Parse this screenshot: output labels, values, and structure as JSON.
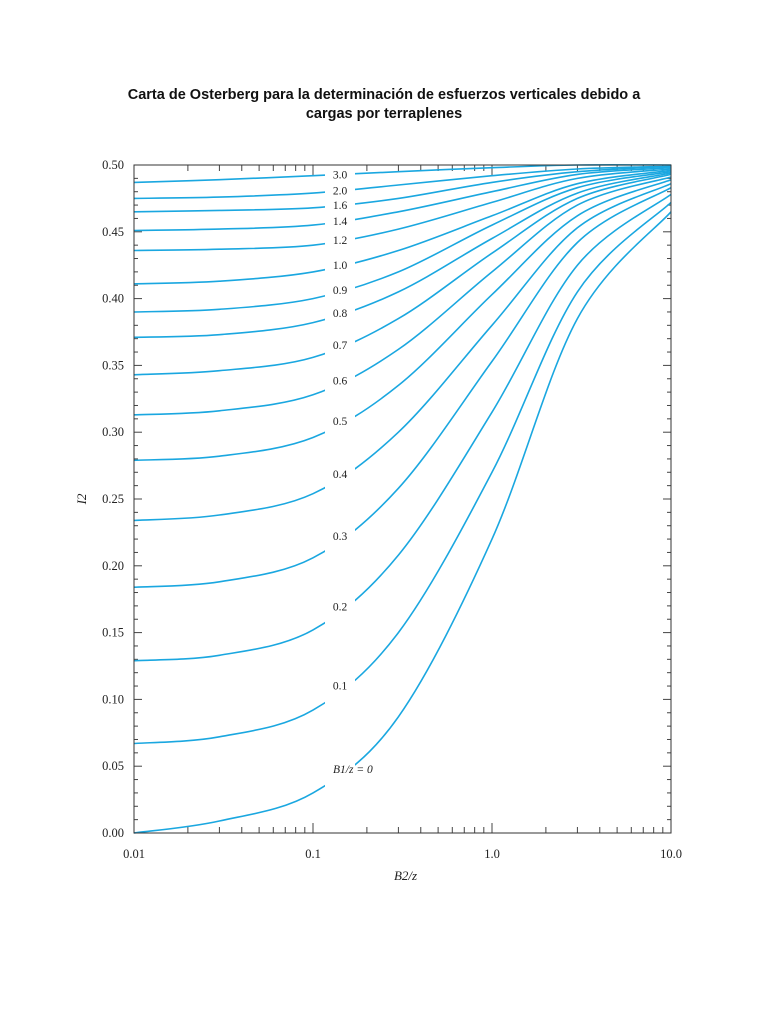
{
  "title_line1": "Carta de Osterberg para la determinación de esfuerzos verticales debido a",
  "title_line2": "cargas por terraplenes",
  "chart_data": {
    "type": "line",
    "xlabel": "B2/z",
    "ylabel": "I2",
    "x_scale": "log",
    "xlim": [
      0.01,
      10.0
    ],
    "ylim": [
      0.0,
      0.5
    ],
    "x_ticks": [
      "0.01",
      "0.1",
      "1.0",
      "10.0"
    ],
    "y_ticks": [
      "0.00",
      "0.05",
      "0.10",
      "0.15",
      "0.20",
      "0.25",
      "0.30",
      "0.35",
      "0.40",
      "0.45",
      "0.50"
    ],
    "curve_color": "#1aa7e0",
    "series": [
      {
        "name": "3.0",
        "x": [
          0.01,
          0.03,
          0.1,
          0.3,
          1.0,
          3.0,
          10.0
        ],
        "y": [
          0.487,
          0.489,
          0.492,
          0.495,
          0.498,
          0.5,
          0.5
        ]
      },
      {
        "name": "2.0",
        "x": [
          0.01,
          0.03,
          0.1,
          0.3,
          1.0,
          3.0,
          10.0
        ],
        "y": [
          0.475,
          0.476,
          0.479,
          0.485,
          0.492,
          0.497,
          0.499
        ]
      },
      {
        "name": "1.6",
        "x": [
          0.01,
          0.03,
          0.1,
          0.3,
          1.0,
          3.0,
          10.0
        ],
        "y": [
          0.465,
          0.466,
          0.468,
          0.475,
          0.487,
          0.495,
          0.499
        ]
      },
      {
        "name": "1.4",
        "x": [
          0.01,
          0.03,
          0.1,
          0.3,
          1.0,
          3.0,
          10.0
        ],
        "y": [
          0.451,
          0.452,
          0.455,
          0.465,
          0.48,
          0.493,
          0.498
        ]
      },
      {
        "name": "1.2",
        "x": [
          0.01,
          0.03,
          0.1,
          0.3,
          1.0,
          3.0,
          10.0
        ],
        "y": [
          0.436,
          0.437,
          0.44,
          0.452,
          0.472,
          0.49,
          0.497
        ]
      },
      {
        "name": "1.0",
        "x": [
          0.01,
          0.03,
          0.1,
          0.3,
          1.0,
          3.0,
          10.0
        ],
        "y": [
          0.411,
          0.413,
          0.42,
          0.436,
          0.462,
          0.486,
          0.496
        ]
      },
      {
        "name": "0.9",
        "x": [
          0.01,
          0.03,
          0.1,
          0.3,
          1.0,
          3.0,
          10.0
        ],
        "y": [
          0.39,
          0.392,
          0.4,
          0.42,
          0.455,
          0.483,
          0.495
        ]
      },
      {
        "name": "0.8",
        "x": [
          0.01,
          0.03,
          0.1,
          0.3,
          1.0,
          3.0,
          10.0
        ],
        "y": [
          0.371,
          0.373,
          0.382,
          0.405,
          0.445,
          0.479,
          0.494
        ]
      },
      {
        "name": "0.7",
        "x": [
          0.01,
          0.03,
          0.1,
          0.3,
          1.0,
          3.0,
          10.0
        ],
        "y": [
          0.343,
          0.346,
          0.356,
          0.385,
          0.434,
          0.475,
          0.493
        ]
      },
      {
        "name": "0.6",
        "x": [
          0.01,
          0.03,
          0.1,
          0.3,
          1.0,
          3.0,
          10.0
        ],
        "y": [
          0.313,
          0.316,
          0.328,
          0.362,
          0.42,
          0.47,
          0.491
        ]
      },
      {
        "name": "0.5",
        "x": [
          0.01,
          0.03,
          0.1,
          0.3,
          1.0,
          3.0,
          10.0
        ],
        "y": [
          0.279,
          0.282,
          0.296,
          0.335,
          0.403,
          0.462,
          0.489
        ]
      },
      {
        "name": "0.4",
        "x": [
          0.01,
          0.03,
          0.1,
          0.3,
          1.0,
          3.0,
          10.0
        ],
        "y": [
          0.234,
          0.238,
          0.254,
          0.3,
          0.38,
          0.453,
          0.486
        ]
      },
      {
        "name": "0.3",
        "x": [
          0.01,
          0.03,
          0.1,
          0.3,
          1.0,
          3.0,
          10.0
        ],
        "y": [
          0.184,
          0.188,
          0.206,
          0.258,
          0.353,
          0.442,
          0.483
        ]
      },
      {
        "name": "0.2",
        "x": [
          0.01,
          0.03,
          0.1,
          0.3,
          1.0,
          3.0,
          10.0
        ],
        "y": [
          0.129,
          0.133,
          0.152,
          0.208,
          0.315,
          0.425,
          0.478
        ]
      },
      {
        "name": "0.1",
        "x": [
          0.01,
          0.03,
          0.1,
          0.3,
          1.0,
          3.0,
          10.0
        ],
        "y": [
          0.067,
          0.072,
          0.092,
          0.15,
          0.27,
          0.405,
          0.472
        ]
      },
      {
        "name": "B1/z = 0",
        "x": [
          0.01,
          0.03,
          0.1,
          0.3,
          1.0,
          3.0,
          10.0
        ],
        "y": [
          0.0,
          0.009,
          0.03,
          0.087,
          0.22,
          0.385,
          0.465
        ]
      }
    ]
  }
}
